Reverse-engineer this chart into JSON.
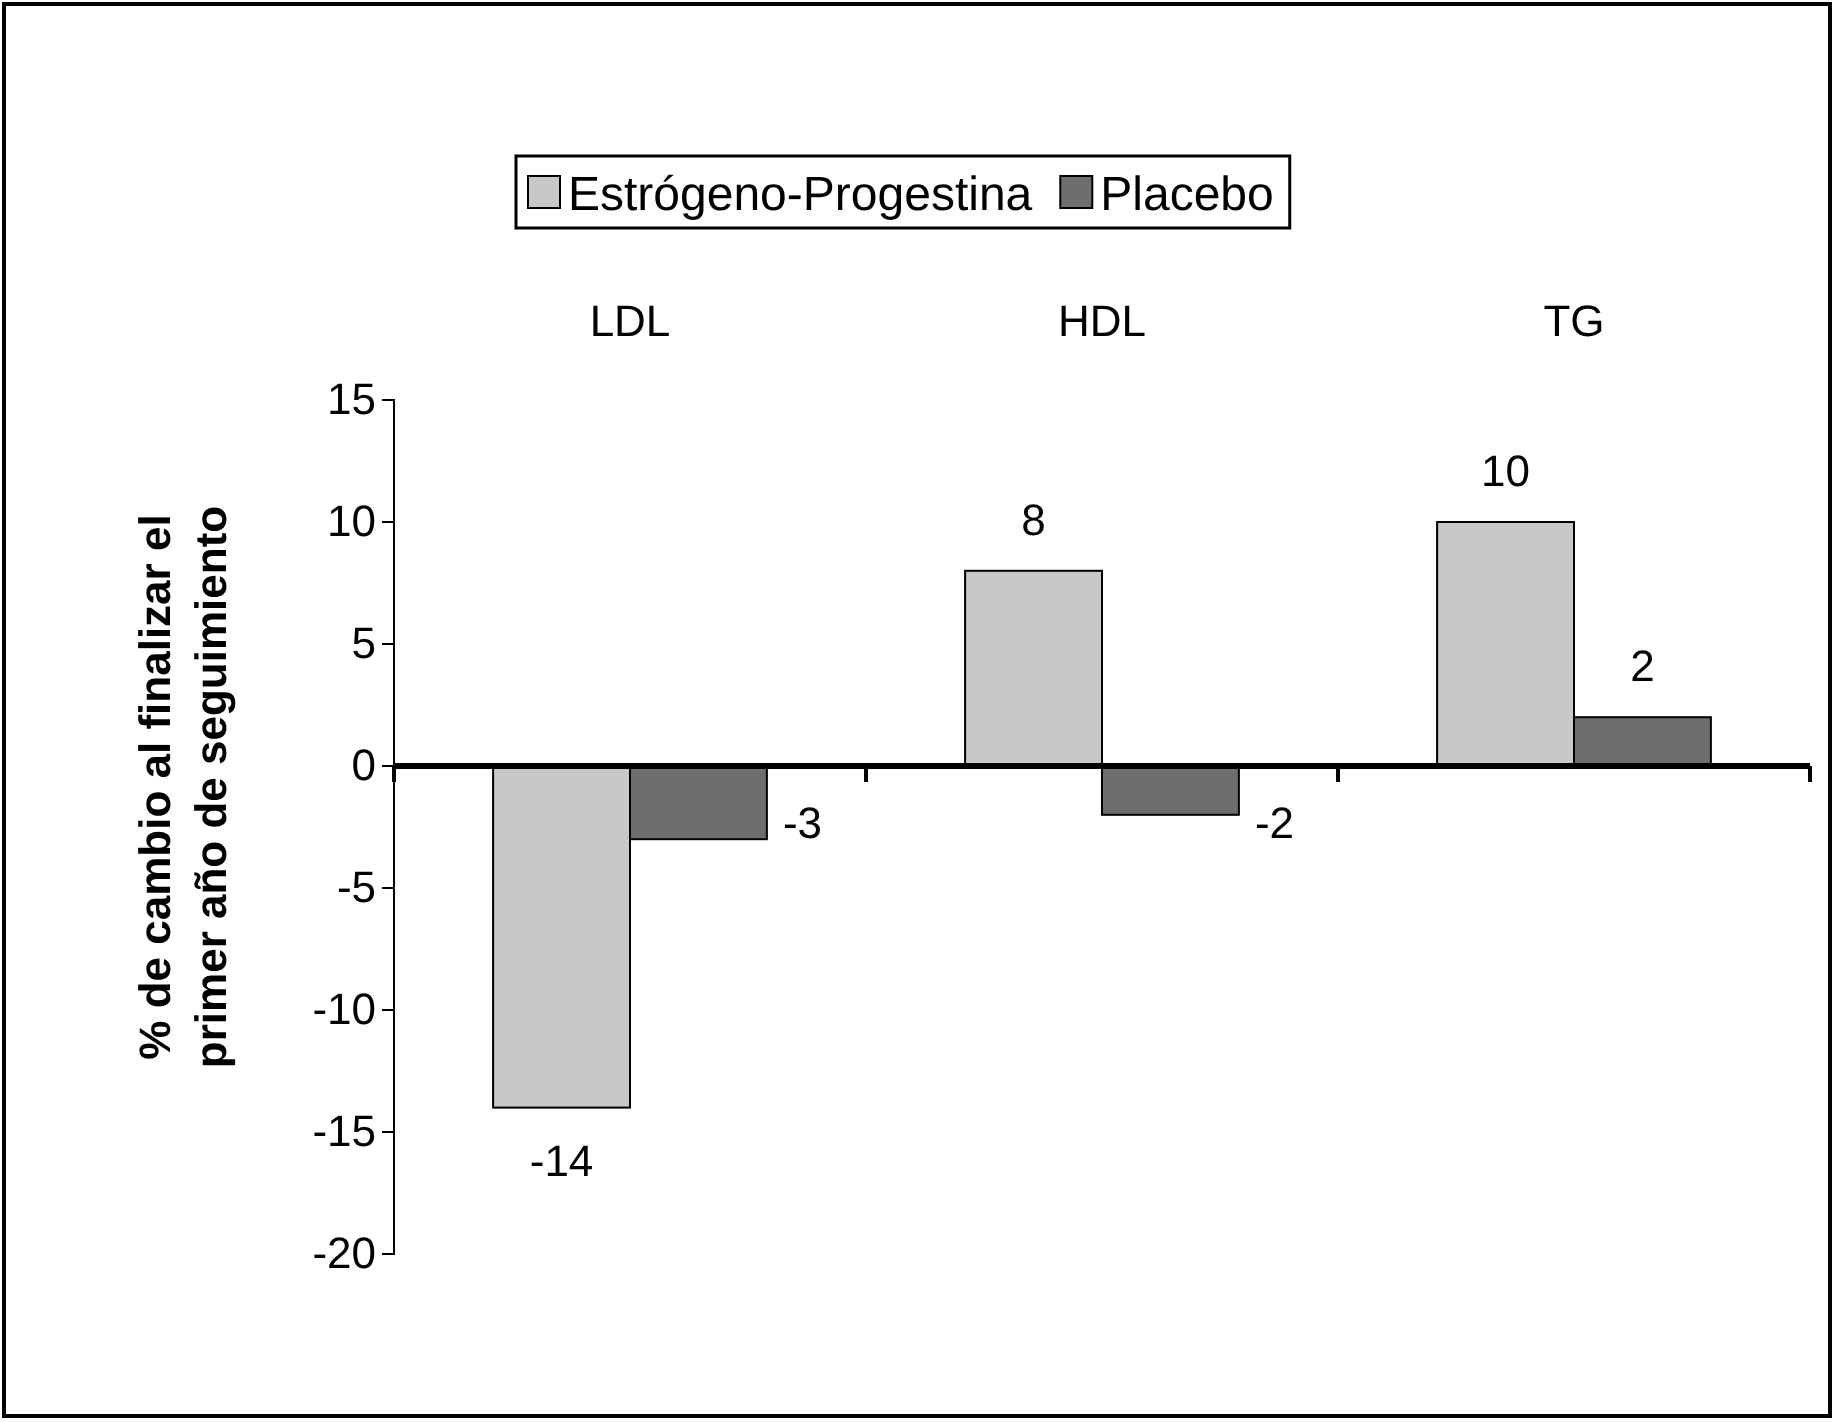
{
  "chart_data": {
    "type": "bar",
    "ylabel": "% de cambio al finalizar el primer año de seguimiento",
    "categories": [
      "LDL",
      "HDL",
      "TG"
    ],
    "series": [
      {
        "name": "Estrógeno-Progestina",
        "color": "#c8c8c8",
        "values": [
          -14,
          8,
          10
        ]
      },
      {
        "name": "Placebo",
        "color": "#6e6e6e",
        "values": [
          -3,
          -2,
          2
        ]
      }
    ],
    "ylim": [
      -20,
      15
    ],
    "yticks": [
      -20,
      -15,
      -10,
      -5,
      0,
      5,
      10,
      15
    ],
    "data_labels": true,
    "legend": "top"
  }
}
